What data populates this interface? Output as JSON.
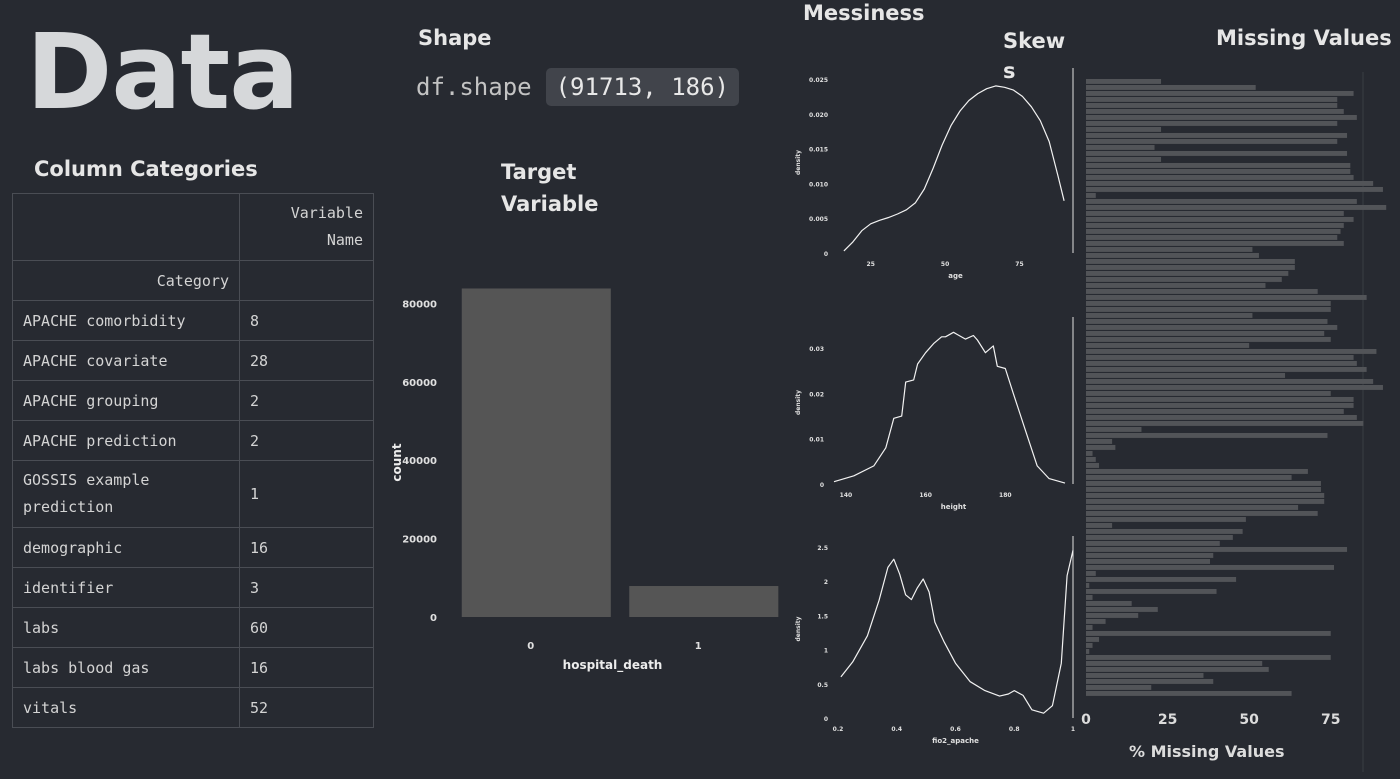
{
  "title": "Data",
  "shape": {
    "heading": "Shape",
    "code": "df.shape",
    "output": "(91713, 186)"
  },
  "column_categories": {
    "heading": "Column Categories",
    "header_value": "Variable Name",
    "header_index": "Category",
    "rows": [
      {
        "category": "APACHE comorbidity",
        "count": "8"
      },
      {
        "category": "APACHE covariate",
        "count": "28"
      },
      {
        "category": "APACHE grouping",
        "count": "2"
      },
      {
        "category": "APACHE prediction",
        "count": "2"
      },
      {
        "category": "GOSSIS example prediction",
        "count": "1"
      },
      {
        "category": "demographic",
        "count": "16"
      },
      {
        "category": "identifier",
        "count": "3"
      },
      {
        "category": "labs",
        "count": "60"
      },
      {
        "category": "labs blood gas",
        "count": "16"
      },
      {
        "category": "vitals",
        "count": "52"
      }
    ]
  },
  "target": {
    "heading_line1": "Target",
    "heading_line2": "Variable"
  },
  "messiness": {
    "heading": "Messiness"
  },
  "skew": {
    "heading_line1": "Skew",
    "heading_line2": "s"
  },
  "missing": {
    "heading": "Missing Values"
  },
  "chart_data": [
    {
      "type": "bar",
      "categories": [
        "0",
        "1"
      ],
      "values": [
        83800,
        7900
      ],
      "xlabel": "hospital_death",
      "ylabel": "count",
      "ylim": [
        0,
        88000
      ],
      "yticks": [
        0,
        20000,
        40000,
        60000,
        80000
      ],
      "color": "#555555"
    },
    {
      "type": "area",
      "xlabel": "age",
      "ylabel": "density",
      "xlim": [
        14,
        93
      ],
      "ylim": [
        0,
        0.026
      ],
      "xticks": [
        25,
        50,
        75
      ],
      "yticks": [
        0,
        0.005,
        0.01,
        0.015,
        0.02,
        0.025
      ],
      "ytick_labels": [
        "0",
        "0.005",
        "0.010",
        "0.015",
        "0.020",
        "0.025"
      ],
      "x": [
        16,
        19,
        22,
        25,
        28,
        31,
        34,
        37,
        40,
        43,
        46,
        49,
        52,
        55,
        58,
        61,
        64,
        67,
        70,
        73,
        76,
        79,
        82,
        85,
        88,
        90
      ],
      "y": [
        0.0003,
        0.0016,
        0.0032,
        0.0042,
        0.0047,
        0.0051,
        0.0056,
        0.0062,
        0.0072,
        0.0092,
        0.0122,
        0.0155,
        0.0183,
        0.0204,
        0.0219,
        0.0229,
        0.0236,
        0.024,
        0.0238,
        0.0234,
        0.0225,
        0.021,
        0.019,
        0.016,
        0.011,
        0.0075
      ]
    },
    {
      "type": "area",
      "xlabel": "height",
      "ylabel": "density",
      "xlim": [
        137,
        197
      ],
      "ylim": [
        0,
        0.036
      ],
      "xticks": [
        140,
        160,
        180
      ],
      "yticks": [
        0,
        0.01,
        0.02,
        0.03
      ],
      "ytick_labels": [
        "0",
        "0.01",
        "0.02",
        "0.03"
      ],
      "x": [
        137,
        142,
        147,
        150,
        152,
        154,
        155,
        157,
        158,
        160,
        162,
        164,
        165,
        167,
        168,
        170,
        172,
        173,
        175,
        177,
        178,
        180,
        182,
        185,
        188,
        191,
        195
      ],
      "y": [
        0.0005,
        0.0018,
        0.004,
        0.008,
        0.0145,
        0.015,
        0.0225,
        0.023,
        0.0265,
        0.029,
        0.031,
        0.0325,
        0.0325,
        0.0335,
        0.033,
        0.032,
        0.0328,
        0.0318,
        0.029,
        0.0305,
        0.026,
        0.0255,
        0.02,
        0.012,
        0.004,
        0.0012,
        0.0002
      ]
    },
    {
      "type": "area",
      "xlabel": "fio2_apache",
      "ylabel": "density",
      "xlim": [
        0.2,
        1.0
      ],
      "ylim": [
        0,
        2.6
      ],
      "xticks": [
        0.2,
        0.4,
        0.6,
        0.8,
        1
      ],
      "yticks": [
        0,
        0.5,
        1,
        1.5,
        2,
        2.5
      ],
      "ytick_labels": [
        "0",
        "0.5",
        "1",
        "1.5",
        "2",
        "2.5"
      ],
      "x": [
        0.21,
        0.25,
        0.3,
        0.34,
        0.37,
        0.39,
        0.41,
        0.43,
        0.45,
        0.47,
        0.49,
        0.51,
        0.53,
        0.56,
        0.6,
        0.65,
        0.7,
        0.75,
        0.78,
        0.8,
        0.83,
        0.86,
        0.9,
        0.93,
        0.96,
        0.98,
        1.0
      ],
      "y": [
        0.6,
        0.82,
        1.2,
        1.72,
        2.2,
        2.32,
        2.1,
        1.8,
        1.73,
        1.9,
        2.03,
        1.84,
        1.4,
        1.12,
        0.8,
        0.53,
        0.4,
        0.32,
        0.35,
        0.4,
        0.33,
        0.12,
        0.07,
        0.18,
        0.8,
        2.08,
        2.45
      ]
    },
    {
      "type": "bar",
      "orientation": "horizontal",
      "xlabel": "% Missing Values",
      "xlim": [
        0,
        95
      ],
      "xticks": [
        0,
        25,
        50,
        75
      ],
      "color": "#525458",
      "values": [
        23,
        52,
        82,
        77,
        77,
        79,
        83,
        77,
        23,
        80,
        77,
        21,
        80,
        23,
        81,
        81,
        82,
        88,
        91,
        3,
        83,
        92,
        79,
        82,
        79,
        78,
        77,
        79,
        51,
        53,
        64,
        64,
        62,
        60,
        55,
        71,
        86,
        75,
        75,
        51,
        74,
        77,
        73,
        75,
        50,
        89,
        82,
        83,
        86,
        61,
        88,
        91,
        75,
        82,
        82,
        79,
        83,
        85,
        17,
        74,
        8,
        9,
        2,
        3,
        4,
        68,
        63,
        72,
        72,
        73,
        73,
        65,
        71,
        49,
        8,
        48,
        45,
        41,
        80,
        39,
        38,
        76,
        3,
        46,
        1,
        40,
        2,
        14,
        22,
        16,
        6,
        2,
        75,
        4,
        2,
        1,
        75,
        54,
        56,
        36,
        39,
        20,
        63
      ]
    }
  ]
}
